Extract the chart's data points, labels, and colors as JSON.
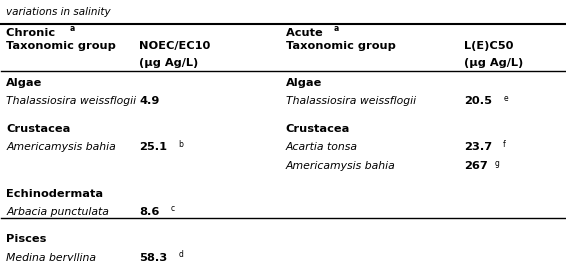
{
  "title_line": "variations in salinity",
  "bg_color": "#ffffff",
  "figsize": [
    5.66,
    2.61
  ],
  "dpi": 100,
  "sections": [
    {
      "group": "Algae",
      "chronic_species": [
        "Thalassiosira weissflogii"
      ],
      "chronic_values": [
        "4.9"
      ],
      "chronic_superscripts": [
        ""
      ],
      "acute_group": "Algae",
      "acute_species": [
        "Thalassiosira weissflogii"
      ],
      "acute_values": [
        "20.5"
      ],
      "acute_superscripts": [
        "e"
      ]
    },
    {
      "group": "Crustacea",
      "chronic_species": [
        "Americamysis bahia"
      ],
      "chronic_values": [
        "25.1"
      ],
      "chronic_superscripts": [
        "b"
      ],
      "acute_group": "Crustacea",
      "acute_species": [
        "Acartia tonsa",
        "Americamysis bahia"
      ],
      "acute_values": [
        "23.7",
        "267"
      ],
      "acute_superscripts": [
        "f",
        "g"
      ]
    },
    {
      "group": "Echinodermata",
      "chronic_species": [
        "Arbacia punctulata"
      ],
      "chronic_values": [
        "8.6"
      ],
      "chronic_superscripts": [
        "c"
      ],
      "acute_group": "",
      "acute_species": [],
      "acute_values": [],
      "acute_superscripts": []
    },
    {
      "group": "Pisces",
      "chronic_species": [
        "Medina beryllina"
      ],
      "chronic_values": [
        "58.3"
      ],
      "chronic_superscripts": [
        "d"
      ],
      "acute_group": "",
      "acute_species": [],
      "acute_values": [],
      "acute_superscripts": []
    }
  ],
  "col_x": {
    "chronic_group": 0.01,
    "chronic_val": 0.245,
    "acute_group": 0.505,
    "acute_val": 0.82
  },
  "header_bold_fontsize": 8.2,
  "group_bold_fontsize": 8.2,
  "species_fontsize": 7.8,
  "value_fontsize": 8.2,
  "title_fontsize": 7.5
}
